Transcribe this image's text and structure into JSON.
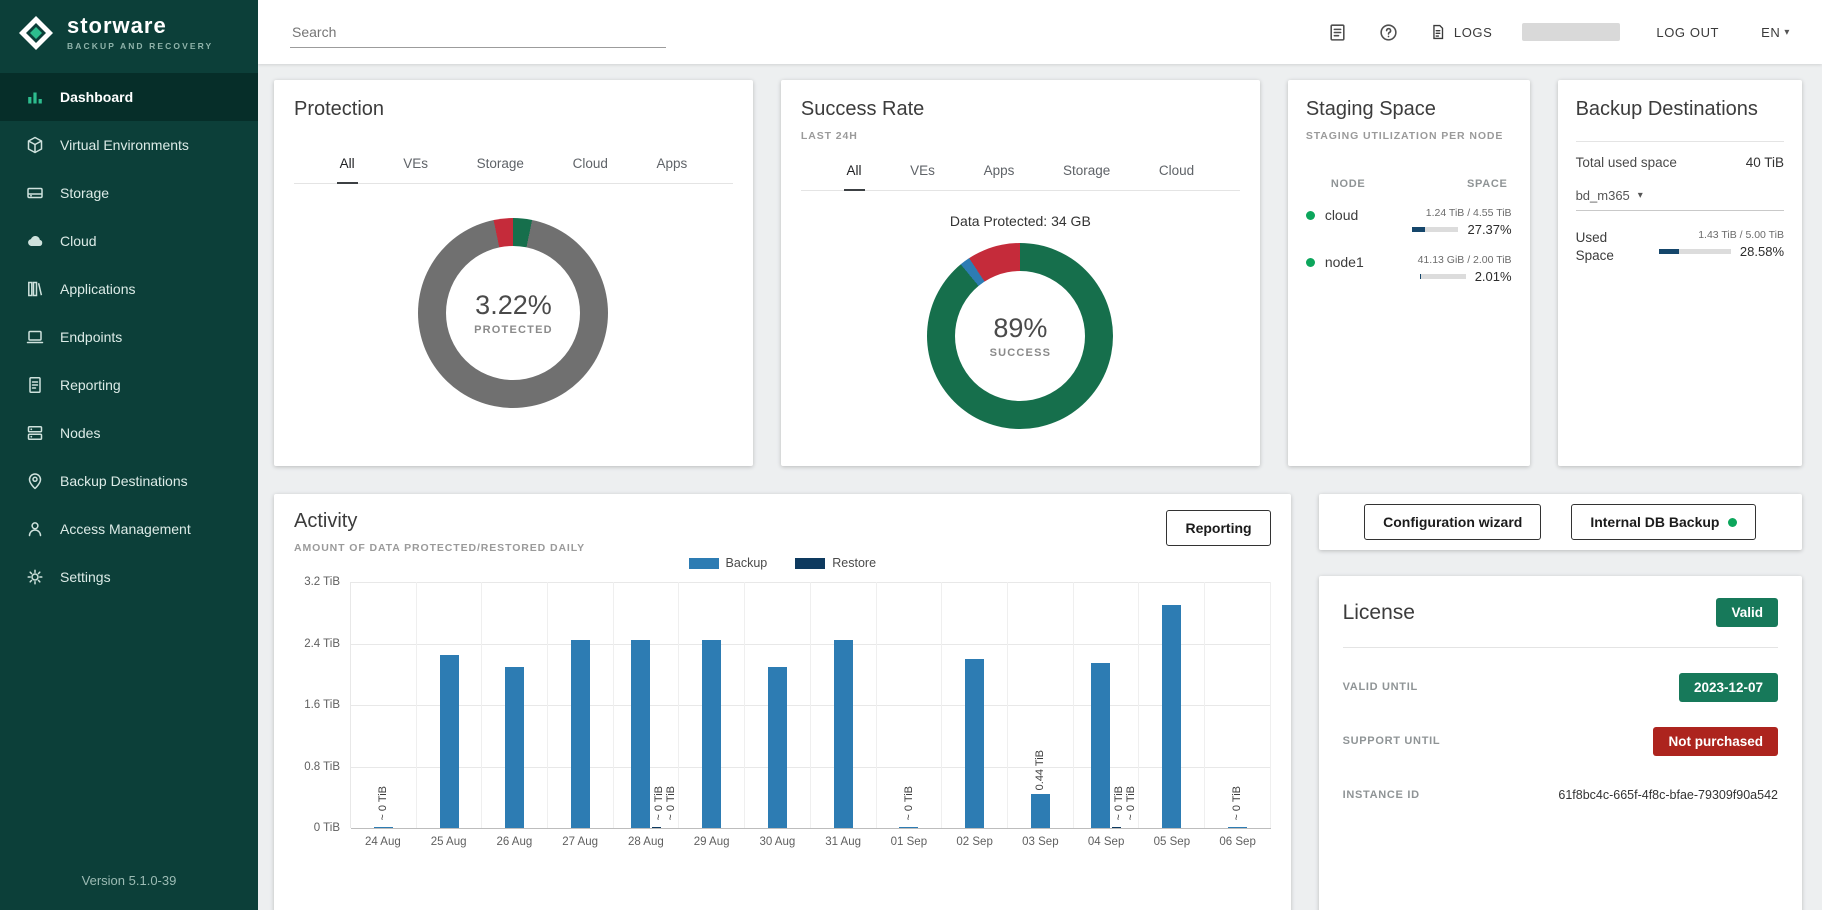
{
  "brand": {
    "name": "storware",
    "tagline": "BACKUP AND RECOVERY",
    "version": "Version 5.1.0-39"
  },
  "topbar": {
    "search_placeholder": "Search",
    "logs": "LOGS",
    "logout": "LOG OUT",
    "language": "EN"
  },
  "sidebar": {
    "items": [
      {
        "label": "Dashboard",
        "active": true
      },
      {
        "label": "Virtual Environments"
      },
      {
        "label": "Storage"
      },
      {
        "label": "Cloud"
      },
      {
        "label": "Applications"
      },
      {
        "label": "Endpoints"
      },
      {
        "label": "Reporting"
      },
      {
        "label": "Nodes"
      },
      {
        "label": "Backup Destinations"
      },
      {
        "label": "Access Management"
      },
      {
        "label": "Settings"
      }
    ]
  },
  "protection": {
    "title": "Protection",
    "tabs": [
      "All",
      "VEs",
      "Storage",
      "Cloud",
      "Apps"
    ],
    "active_tab": "All"
  },
  "success_rate": {
    "title": "Success Rate",
    "subtitle": "LAST 24H",
    "tabs": [
      "All",
      "VEs",
      "Apps",
      "Storage",
      "Cloud"
    ],
    "active_tab": "All",
    "annotation": "Data Protected: 34 GB"
  },
  "staging": {
    "title": "Staging Space",
    "subtitle": "STAGING UTILIZATION PER NODE",
    "col_node": "NODE",
    "col_space": "SPACE",
    "rows": [
      {
        "node": "cloud",
        "fraction": "1.24 TiB / 4.55 TiB",
        "percent": "27.37%",
        "ratio": 0.2737
      },
      {
        "node": "node1",
        "fraction": "41.13 GiB / 2.00 TiB",
        "percent": "2.01%",
        "ratio": 0.0201
      }
    ]
  },
  "backup_destinations": {
    "title": "Backup Destinations",
    "total_label": "Total used space",
    "total_value": "40 TiB",
    "selected_destination": "bd_m365",
    "used_label": "Used Space",
    "fraction": "1.43 TiB / 5.00 TiB",
    "percent": "28.58%",
    "ratio": 0.2858
  },
  "activity": {
    "title": "Activity",
    "subtitle": "AMOUNT OF DATA PROTECTED/RESTORED DAILY",
    "reporting_button": "Reporting"
  },
  "actions": {
    "configuration_wizard": "Configuration wizard",
    "internal_db_backup": "Internal DB Backup"
  },
  "license": {
    "title": "License",
    "status_badge": "Valid",
    "valid_until_label": "VALID UNTIL",
    "valid_until_value": "2023-12-07",
    "support_until_label": "SUPPORT UNTIL",
    "support_until_value": "Not purchased",
    "instance_id_label": "INSTANCE ID",
    "instance_id_value": "61f8bc4c-665f-4f8c-bfae-79309f90a542"
  },
  "colors": {
    "sidebar_bg": "#0c3f39",
    "accent_teal": "#2dbd8e",
    "donut_green": "#166f4c",
    "donut_red": "#c52b3a",
    "donut_gray": "#707070",
    "bar_blue": "#2d7cb3",
    "bar_navy": "#0e3a5f",
    "badge_green": "#17795a",
    "badge_red": "#ad241e",
    "node_dot_green": "#0ca65c",
    "progress_fill": "#15466b"
  },
  "chart_data": [
    {
      "type": "donut",
      "title": "Protection",
      "center_value": "3.22%",
      "center_label": "PROTECTED",
      "segments": [
        {
          "value": 3.22,
          "color": "#166f4c"
        },
        {
          "value": 93.5,
          "color": "#707070"
        },
        {
          "value": 3.28,
          "color": "#c52b3a"
        }
      ]
    },
    {
      "type": "donut",
      "title": "Success Rate",
      "center_value": "89%",
      "center_label": "SUCCESS",
      "annotation": "Data Protected: 34 GB",
      "segments": [
        {
          "value": 89,
          "color": "#166f4c"
        },
        {
          "value": 1.8,
          "color": "#2d7cb3"
        },
        {
          "value": 9.2,
          "color": "#c52b3a"
        }
      ]
    },
    {
      "type": "bar",
      "title": "Activity",
      "subtitle": "AMOUNT OF DATA PROTECTED/RESTORED DAILY",
      "ylabel": "TiB",
      "ylim": [
        0,
        3.2
      ],
      "yticks": [
        "3.2 TiB",
        "2.4 TiB",
        "1.6 TiB",
        "0.8 TiB",
        "0 TiB"
      ],
      "categories": [
        "24 Aug",
        "25 Aug",
        "26 Aug",
        "27 Aug",
        "28 Aug",
        "29 Aug",
        "30 Aug",
        "31 Aug",
        "01 Sep",
        "02 Sep",
        "03 Sep",
        "04 Sep",
        "05 Sep",
        "06 Sep"
      ],
      "series": [
        {
          "name": "Backup",
          "color": "#2d7cb3",
          "values": [
            0.01,
            2.25,
            2.1,
            2.45,
            2.45,
            2.45,
            2.1,
            2.45,
            0.01,
            2.2,
            0.44,
            2.15,
            2.9,
            0.01
          ]
        },
        {
          "name": "Restore",
          "color": "#0e3a5f",
          "values": [
            0,
            0,
            0,
            0,
            0.01,
            0,
            0,
            0,
            0,
            0,
            0,
            0.01,
            0,
            0
          ]
        }
      ],
      "bar_labels": [
        {
          "index": 0,
          "text": "~ 0 TiB",
          "dx": 0,
          "bottom": 0.03
        },
        {
          "index": 4,
          "text": "~ 0 TiB",
          "dx": 13,
          "bottom": 0.03
        },
        {
          "index": 4,
          "text": "~ 0 TiB",
          "dx": 25,
          "bottom": 0.03
        },
        {
          "index": 8,
          "text": "~ 0 TiB",
          "dx": 0,
          "bottom": 0.03
        },
        {
          "index": 10,
          "text": "0.44 TiB",
          "dx": 0,
          "bottom": 0.155
        },
        {
          "index": 11,
          "text": "~ 0 TiB",
          "dx": 13,
          "bottom": 0.03
        },
        {
          "index": 11,
          "text": "~ 0 TiB",
          "dx": 25,
          "bottom": 0.03
        },
        {
          "index": 13,
          "text": "~ 0 TiB",
          "dx": 0,
          "bottom": 0.03
        }
      ],
      "legend_position": "top"
    }
  ]
}
